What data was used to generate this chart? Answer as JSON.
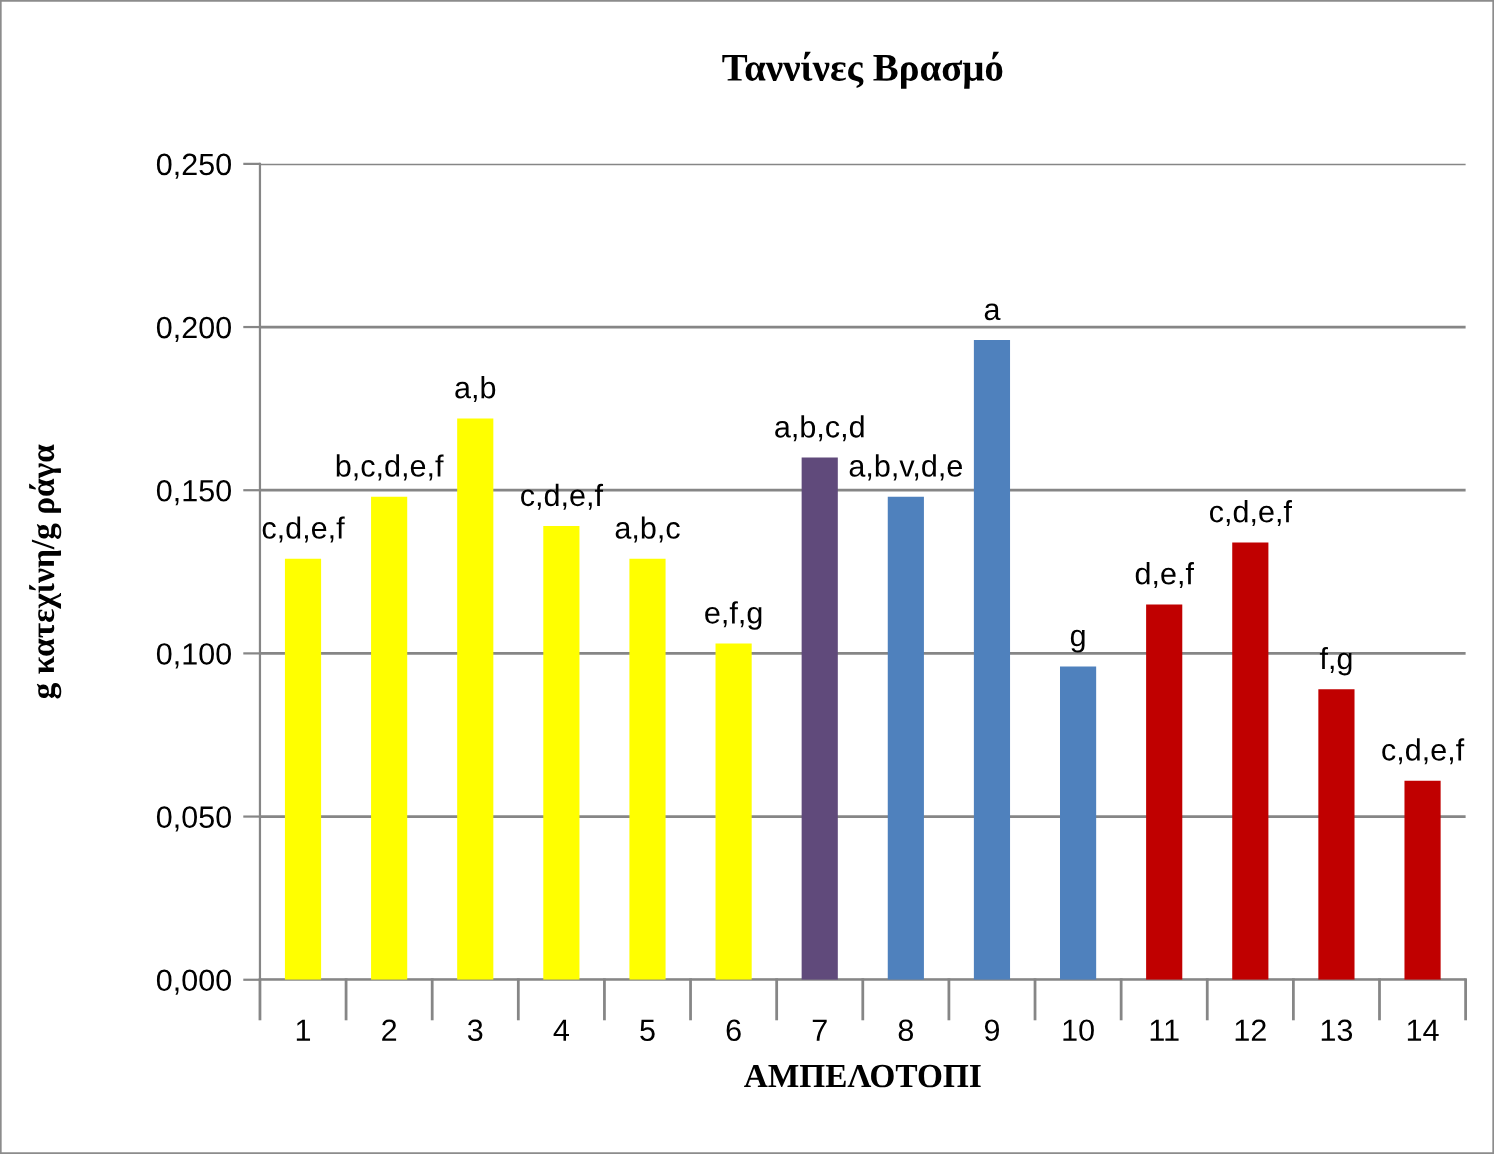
{
  "chart_data": {
    "type": "bar",
    "title": "Ταννίνες Βρασμό",
    "xlabel": "ΑΜΠΕΛΟΤΟΠΙ",
    "ylabel": "g κατεχίνη/g ράγα",
    "categories": [
      "1",
      "2",
      "3",
      "4",
      "5",
      "6",
      "7",
      "8",
      "9",
      "10",
      "11",
      "12",
      "13",
      "14"
    ],
    "values": [
      0.129,
      0.148,
      0.172,
      0.139,
      0.129,
      0.103,
      0.16,
      0.148,
      0.196,
      0.096,
      0.115,
      0.134,
      0.089,
      0.061
    ],
    "colors": [
      "#ffff00",
      "#ffff00",
      "#ffff00",
      "#ffff00",
      "#ffff00",
      "#ffff00",
      "#604a7b",
      "#4f81bd",
      "#4f81bd",
      "#4f81bd",
      "#c00000",
      "#c00000",
      "#c00000",
      "#c00000"
    ],
    "ylim": [
      0,
      0.25
    ],
    "yticks": [
      {
        "value": 0,
        "label": "0,000"
      },
      {
        "value": 0.05,
        "label": "0,050"
      },
      {
        "value": 0.1,
        "label": "0,100"
      },
      {
        "value": 0.15,
        "label": "0,150"
      },
      {
        "value": 0.2,
        "label": "0,200"
      },
      {
        "value": 0.25,
        "label": "0,250"
      }
    ],
    "grid": "y",
    "legend": false,
    "annotations": [
      {
        "text": "c,d,e,f",
        "x": "1",
        "y": 0.129
      },
      {
        "text": "b,c,d,e,f",
        "x": "2",
        "y": 0.148
      },
      {
        "text": "a,b",
        "x": "3",
        "y": 0.172
      },
      {
        "text": "c,d,e,f",
        "x": "4",
        "y": 0.139
      },
      {
        "text": "a,b,c",
        "x": "5",
        "y": 0.129
      },
      {
        "text": "e,f,g",
        "x": "6",
        "y": 0.103
      },
      {
        "text": "a,b,c,d",
        "x": "7",
        "y": 0.16
      },
      {
        "text": "a,b,v,d,e",
        "x": "8",
        "y": 0.148
      },
      {
        "text": "a",
        "x": "9",
        "y": 0.196
      },
      {
        "text": "g",
        "x": "10",
        "y": 0.096
      },
      {
        "text": "d,e,f",
        "x": "11",
        "y": 0.115
      },
      {
        "text": "c,d,e,f",
        "x": "12",
        "y": 0.134
      },
      {
        "text": "f,g",
        "x": "13",
        "y": 0.089
      },
      {
        "text": "c,d,e,f",
        "x": "14",
        "y": 0.061
      }
    ]
  }
}
